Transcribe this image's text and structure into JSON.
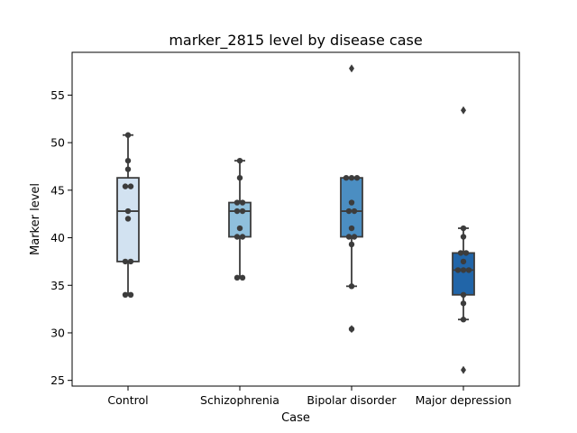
{
  "chart_data": {
    "type": "box",
    "title": "marker_2815 level by disease case",
    "xlabel": "Case",
    "ylabel": "Marker level",
    "ylim": [
      24.4,
      59.5
    ],
    "yticks": [
      25,
      30,
      35,
      40,
      45,
      50,
      55
    ],
    "grid": false,
    "categories": [
      "Control",
      "Schizophrenia",
      "Bipolar disorder",
      "Major depression"
    ],
    "colors": [
      "#d2e2f1",
      "#8fbfdc",
      "#4b8ec2",
      "#2165a8"
    ],
    "boxes": [
      {
        "category": "Control",
        "whisker_low": 34.0,
        "q1": 37.5,
        "median": 42.8,
        "q3": 46.3,
        "whisker_high": 50.8,
        "outliers": []
      },
      {
        "category": "Schizophrenia",
        "whisker_low": 35.8,
        "q1": 40.1,
        "median": 42.8,
        "q3": 43.7,
        "whisker_high": 48.1,
        "outliers": []
      },
      {
        "category": "Bipolar disorder",
        "whisker_low": 34.9,
        "q1": 40.1,
        "median": 42.8,
        "q3": 46.3,
        "whisker_high": 46.3,
        "outliers": [
          30.4,
          57.8
        ]
      },
      {
        "category": "Major depression",
        "whisker_low": 31.4,
        "q1": 34.0,
        "median": 36.6,
        "q3": 38.4,
        "whisker_high": 41.0,
        "outliers": [
          26.1,
          53.4
        ]
      }
    ],
    "points": [
      [
        34.0,
        34.0,
        37.5,
        37.5,
        42.0,
        42.8,
        45.4,
        45.4,
        47.2,
        48.1,
        50.8
      ],
      [
        35.8,
        35.8,
        40.1,
        40.1,
        41.0,
        42.8,
        42.8,
        43.7,
        43.7,
        46.3,
        48.1
      ],
      [
        30.4,
        34.9,
        39.3,
        40.1,
        40.1,
        41.0,
        42.8,
        42.8,
        43.7,
        46.3,
        46.3,
        46.3
      ],
      [
        31.4,
        33.1,
        34.0,
        36.6,
        36.6,
        36.6,
        37.5,
        38.4,
        38.4,
        40.1,
        41.0
      ]
    ]
  }
}
